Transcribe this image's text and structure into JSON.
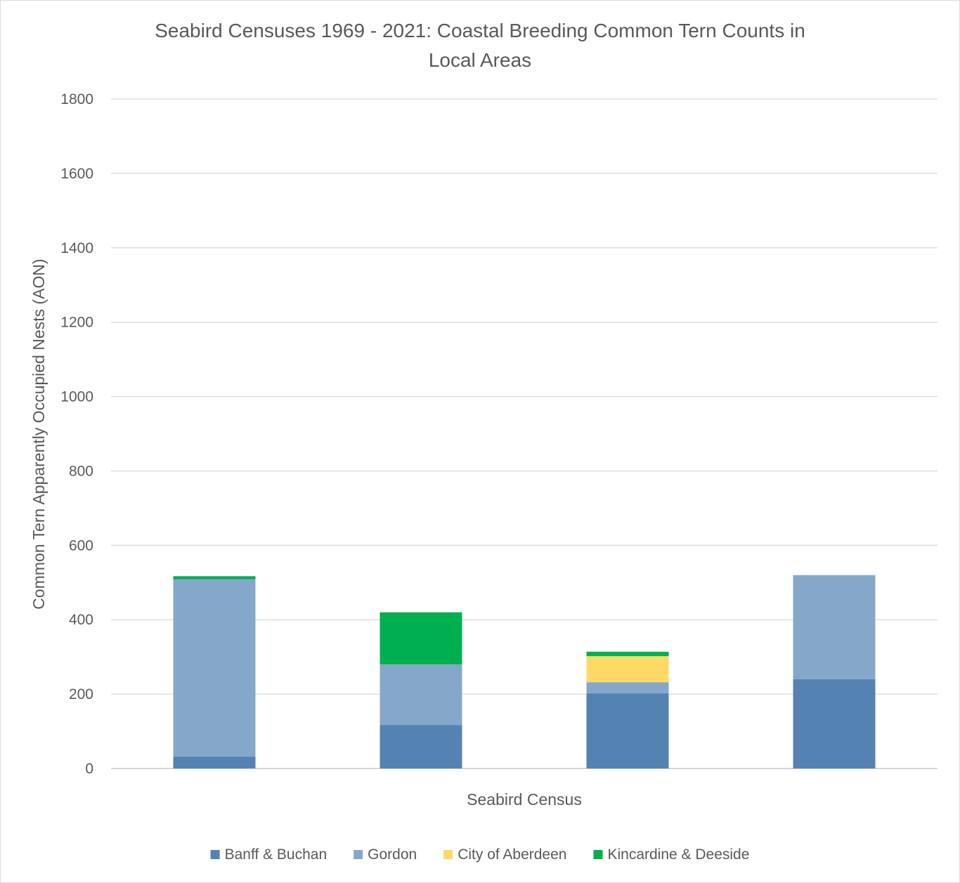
{
  "chart_data": {
    "type": "bar",
    "stacked": true,
    "title_lines": [
      "Seabird Censuses 1969 - 2021: Coastal Breeding Common Tern Counts in",
      "Local Areas"
    ],
    "xlabel": "Seabird Census",
    "ylabel": "Common Tern Apparently Occupied Nests (AON)",
    "ylim": [
      0,
      1800
    ],
    "yticks": [
      "0",
      "200",
      "400",
      "600",
      "800",
      "1000",
      "1200",
      "1400",
      "1600",
      "1800"
    ],
    "categories": [
      "",
      "",
      "",
      ""
    ],
    "grid": true,
    "legend_position": "bottom",
    "series": [
      {
        "name": "Banff & Buchan",
        "color": "#5483B3",
        "values": [
          32,
          117,
          202,
          240
        ]
      },
      {
        "name": "Gordon",
        "color": "#85A8CA",
        "values": [
          477,
          163,
          30,
          280
        ]
      },
      {
        "name": "City of Aberdeen",
        "color": "#FFD966",
        "values": [
          0,
          0,
          70,
          0
        ]
      },
      {
        "name": "Kincardine & Deeside",
        "color": "#00AF50",
        "values": [
          8,
          140,
          12,
          0
        ]
      }
    ]
  }
}
